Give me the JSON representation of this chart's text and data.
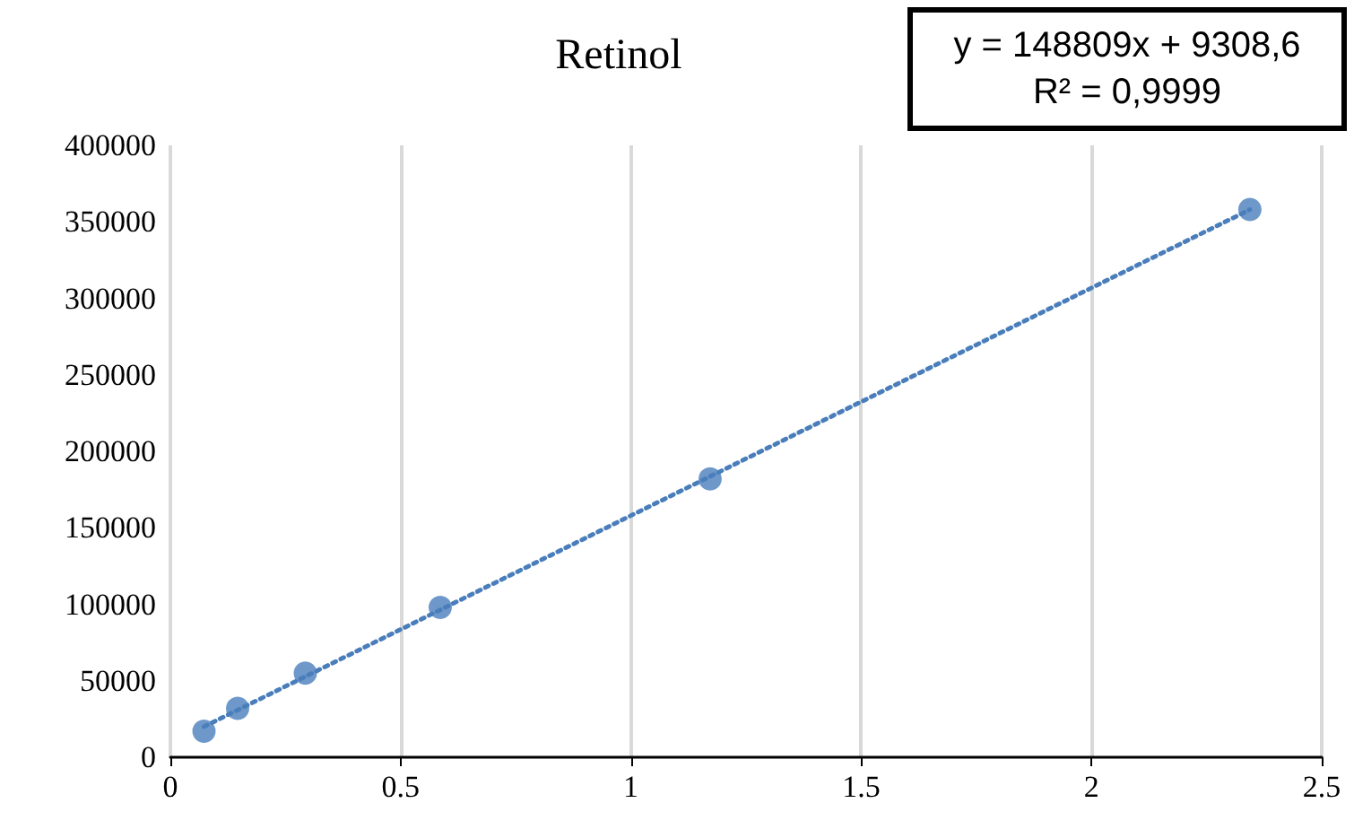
{
  "chart_data": {
    "type": "scatter",
    "title": "Retinol",
    "x": [
      0.073,
      0.146,
      0.293,
      0.586,
      1.172,
      2.344
    ],
    "series": [
      {
        "color": "#4a7ebb",
        "values": [
          17000,
          32000,
          55000,
          98000,
          182000,
          358000
        ],
        "marker": "circle"
      },
      {
        "type": "line",
        "color": "#4a7ebb",
        "x": [
          0.073,
          2.344
        ],
        "values": [
          20000,
          358000
        ],
        "line_style": "dotted",
        "marker": "none"
      }
    ],
    "xlim": [
      0,
      2.5
    ],
    "xticks": [
      0,
      0.5,
      1,
      1.5,
      2,
      2.5
    ],
    "ylim": [
      0,
      400000
    ],
    "yticks": [
      0,
      50000,
      100000,
      150000,
      200000,
      250000,
      300000,
      350000,
      400000
    ],
    "grid": "x",
    "annotations": [
      "y = 148809x + 9308,6",
      "R² = 0,9999"
    ]
  }
}
